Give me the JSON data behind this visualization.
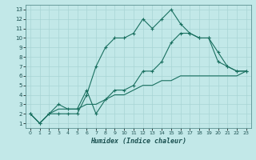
{
  "xlabel": "Humidex (Indice chaleur)",
  "bg_color": "#c2e8e8",
  "grid_color": "#a8d4d4",
  "line_color": "#1a7060",
  "xlim": [
    -0.5,
    23.5
  ],
  "ylim": [
    0.5,
    13.5
  ],
  "xticks": [
    0,
    1,
    2,
    3,
    4,
    5,
    6,
    7,
    8,
    9,
    10,
    11,
    12,
    13,
    14,
    15,
    16,
    17,
    18,
    19,
    20,
    21,
    22,
    23
  ],
  "yticks": [
    1,
    2,
    3,
    4,
    5,
    6,
    7,
    8,
    9,
    10,
    11,
    12,
    13
  ],
  "line1_x": [
    0,
    1,
    2,
    3,
    4,
    5,
    6,
    7,
    8,
    9,
    10,
    11,
    12,
    13,
    14,
    15,
    16,
    17,
    18,
    19,
    20,
    21,
    22,
    23
  ],
  "line1_y": [
    2.0,
    1.0,
    2.0,
    2.5,
    2.5,
    2.5,
    3.0,
    3.0,
    3.5,
    4.0,
    4.0,
    4.5,
    5.0,
    5.0,
    5.5,
    5.5,
    6.0,
    6.0,
    6.0,
    6.0,
    6.0,
    6.0,
    6.0,
    6.5
  ],
  "line2_x": [
    0,
    1,
    2,
    3,
    4,
    5,
    6,
    7,
    8,
    9,
    10,
    11,
    12,
    13,
    14,
    15,
    16,
    17,
    18,
    19,
    20,
    21,
    22,
    23
  ],
  "line2_y": [
    2,
    1,
    2,
    2,
    2,
    2,
    4,
    7,
    9,
    10,
    10,
    10.5,
    12,
    11,
    12,
    13,
    11.5,
    10.5,
    10,
    10,
    8.5,
    7,
    6.5,
    6.5
  ],
  "line3_x": [
    0,
    1,
    2,
    3,
    4,
    5,
    6,
    7,
    8,
    9,
    10,
    11,
    12,
    13,
    14,
    15,
    16,
    17,
    18,
    19,
    20,
    21,
    22,
    23
  ],
  "line3_y": [
    2,
    1,
    2,
    3,
    2.5,
    2.5,
    4.5,
    2,
    3.5,
    4.5,
    4.5,
    5.0,
    6.5,
    6.5,
    7.5,
    9.5,
    10.5,
    10.5,
    10,
    10,
    7.5,
    7.0,
    6.5,
    6.5
  ]
}
